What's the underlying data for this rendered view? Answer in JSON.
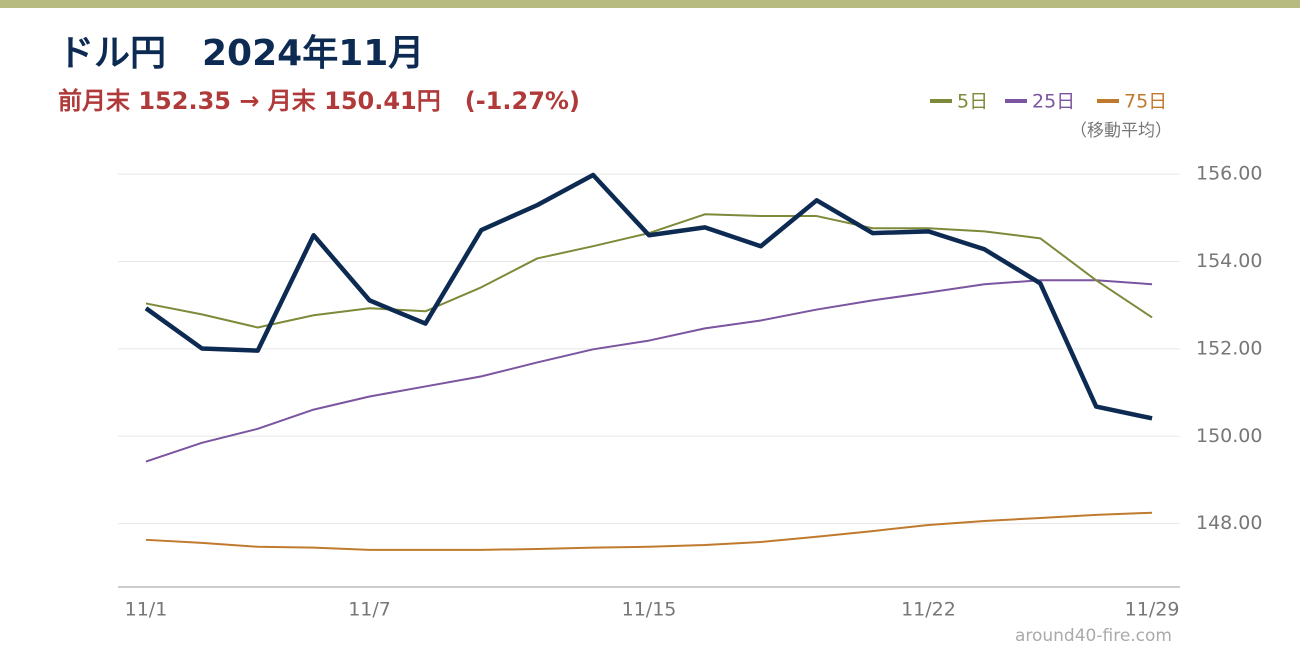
{
  "chart_data": {
    "type": "line",
    "title": "ドル円　2024年11月",
    "subtitle": "前月末 152.35 → 月末 150.41円　(-1.27%)",
    "legend_note": "（移動平均）",
    "source": "around40-fire.com",
    "categories": [
      "11/1",
      null,
      null,
      null,
      "11/7",
      null,
      null,
      null,
      null,
      "11/15",
      null,
      null,
      null,
      null,
      "11/22",
      null,
      null,
      null,
      "11/29"
    ],
    "values": [
      152.93,
      152.01,
      151.96,
      154.6,
      153.11,
      152.58,
      154.72,
      155.29,
      155.98,
      154.6,
      154.78,
      154.35,
      155.4,
      154.65,
      154.69,
      154.28,
      153.5,
      150.68,
      150.41
    ],
    "color": "#0d2b52",
    "series": [
      {
        "name": "5日",
        "color": "#7d8a3a",
        "values": [
          153.04,
          152.79,
          152.49,
          152.77,
          152.93,
          152.86,
          153.41,
          154.07,
          154.35,
          154.65,
          155.08,
          155.04,
          155.04,
          154.76,
          154.76,
          154.69,
          154.53,
          153.57,
          152.72
        ]
      },
      {
        "name": "25日",
        "color": "#7b55a0",
        "values": [
          149.42,
          149.85,
          150.17,
          150.61,
          150.91,
          151.14,
          151.37,
          151.69,
          151.99,
          152.19,
          152.47,
          152.65,
          152.9,
          153.11,
          153.29,
          153.48,
          153.57,
          153.57,
          153.48
        ]
      },
      {
        "name": "75日",
        "color": "#c07a2e",
        "values": [
          147.63,
          147.56,
          147.47,
          147.45,
          147.4,
          147.4,
          147.4,
          147.42,
          147.45,
          147.47,
          147.51,
          147.58,
          147.7,
          147.83,
          147.97,
          148.06,
          148.13,
          148.2,
          148.25
        ]
      }
    ],
    "ylim": [
      146.55,
      156.3
    ],
    "yticks": [
      {
        "value": 148,
        "label": "148.00"
      },
      {
        "value": 150,
        "label": "150.00"
      },
      {
        "value": 152,
        "label": "152.00"
      },
      {
        "value": 154,
        "label": "154.00"
      },
      {
        "value": 156,
        "label": "156.00"
      }
    ],
    "grid": true
  }
}
